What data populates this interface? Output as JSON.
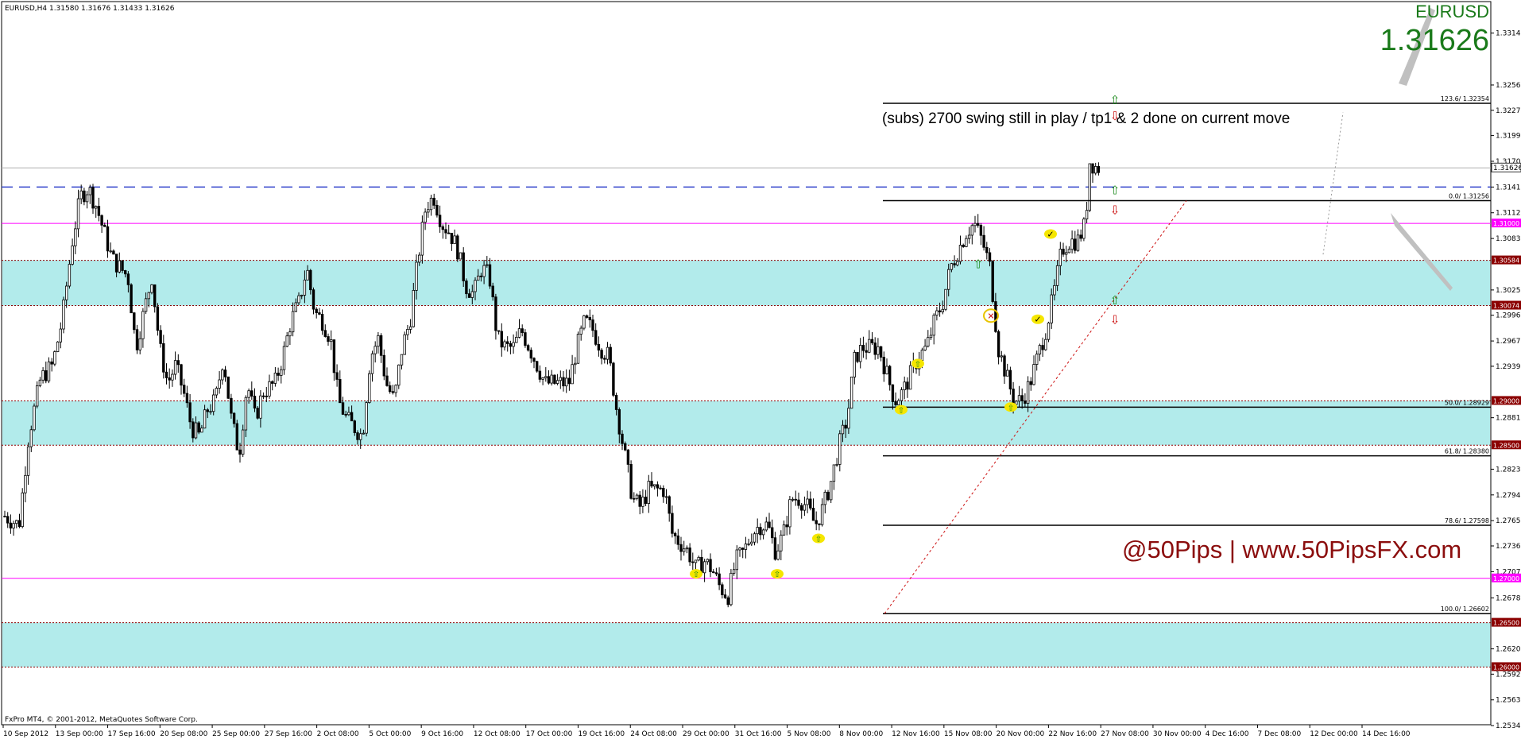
{
  "header": {
    "symbol_info": "EURUSD,H4  1.31580 1.31676 1.31433 1.31626",
    "copyright": "FxPro MT4, © 2001-2012, MetaQuotes Software Corp."
  },
  "ticker": {
    "symbol": "EURUSD",
    "price": "1.31626"
  },
  "annotation": "(subs) 2700 swing still in play / tp1 & 2 done on current move",
  "brand": "@50Pips | www.50PipsFX.com",
  "colors": {
    "candle": "#000000",
    "zone_fill": "#b2ebeb",
    "zone_border": "#8b0000",
    "magenta_line": "#ff00ff",
    "dashed_blue": "#3344cc",
    "badge_bg": "#8b0000",
    "magenta_badge_bg": "#ff00ff",
    "marker_yellow": "#f5e600",
    "arrow_green": "#1a8a1a",
    "arrow_red": "#cc1111"
  },
  "chart_data": {
    "type": "candlestick",
    "timeframe": "H4",
    "y_range": [
      1.2535,
      1.335
    ],
    "y_ticks": [
      "1.33145",
      "1.32560",
      "1.32275",
      "1.31990",
      "1.31700",
      "1.31410",
      "1.31120",
      "1.30830",
      "1.30250",
      "1.29965",
      "1.29675",
      "1.29390",
      "1.28810",
      "1.28230",
      "1.27940",
      "1.27650",
      "1.27365",
      "1.27075",
      "1.26780",
      "1.26205",
      "1.25920",
      "1.25630",
      "1.25340"
    ],
    "x_ticks": [
      "10 Sep 2012",
      "13 Sep 00:00",
      "17 Sep 16:00",
      "20 Sep 08:00",
      "25 Sep 00:00",
      "27 Sep 16:00",
      "2 Oct 08:00",
      "5 Oct 00:00",
      "9 Oct 16:00",
      "12 Oct 08:00",
      "17 Oct 00:00",
      "19 Oct 16:00",
      "24 Oct 08:00",
      "29 Oct 00:00",
      "31 Oct 16:00",
      "5 Nov 08:00",
      "8 Nov 00:00",
      "12 Nov 16:00",
      "15 Nov 08:00",
      "20 Nov 00:00",
      "22 Nov 16:00",
      "27 Nov 08:00",
      "30 Nov 00:00",
      "4 Dec 16:00",
      "7 Dec 08:00",
      "12 Dec 00:00",
      "14 Dec 16:00"
    ],
    "close_path": [
      [
        0,
        1.277
      ],
      [
        18,
        1.276
      ],
      [
        30,
        1.286
      ],
      [
        45,
        1.2925
      ],
      [
        60,
        1.294
      ],
      [
        72,
        1.299
      ],
      [
        85,
        1.308
      ],
      [
        95,
        1.313
      ],
      [
        105,
        1.314
      ],
      [
        115,
        1.312
      ],
      [
        125,
        1.309
      ],
      [
        135,
        1.306
      ],
      [
        145,
        1.305
      ],
      [
        155,
        1.304
      ],
      [
        165,
        1.296
      ],
      [
        175,
        1.3
      ],
      [
        185,
        1.304
      ],
      [
        195,
        1.296
      ],
      [
        205,
        1.292
      ],
      [
        215,
        1.294
      ],
      [
        225,
        1.291
      ],
      [
        235,
        1.287
      ],
      [
        245,
        1.286
      ],
      [
        255,
        1.289
      ],
      [
        265,
        1.29
      ],
      [
        275,
        1.295
      ],
      [
        285,
        1.288
      ],
      [
        295,
        1.284
      ],
      [
        305,
        1.292
      ],
      [
        315,
        1.288
      ],
      [
        325,
        1.291
      ],
      [
        340,
        1.292
      ],
      [
        350,
        1.295
      ],
      [
        360,
        1.299
      ],
      [
        370,
        1.301
      ],
      [
        380,
        1.305
      ],
      [
        390,
        1.3
      ],
      [
        400,
        1.299
      ],
      [
        410,
        1.297
      ],
      [
        420,
        1.29
      ],
      [
        430,
        1.288
      ],
      [
        440,
        1.287
      ],
      [
        450,
        1.286
      ],
      [
        460,
        1.295
      ],
      [
        470,
        1.297
      ],
      [
        480,
        1.292
      ],
      [
        490,
        1.29
      ],
      [
        500,
        1.296
      ],
      [
        510,
        1.299
      ],
      [
        520,
        1.306
      ],
      [
        530,
        1.312
      ],
      [
        540,
        1.313
      ],
      [
        550,
        1.31
      ],
      [
        560,
        1.309
      ],
      [
        570,
        1.307
      ],
      [
        580,
        1.303
      ],
      [
        590,
        1.302
      ],
      [
        600,
        1.305
      ],
      [
        610,
        1.304
      ],
      [
        620,
        1.297
      ],
      [
        630,
        1.296
      ],
      [
        640,
        1.296
      ],
      [
        650,
        1.298
      ],
      [
        660,
        1.296
      ],
      [
        670,
        1.294
      ],
      [
        680,
        1.292
      ],
      [
        690,
        1.292
      ],
      [
        700,
        1.292
      ],
      [
        710,
        1.292
      ],
      [
        720,
        1.296
      ],
      [
        730,
        1.299
      ],
      [
        740,
        1.298
      ],
      [
        750,
        1.296
      ],
      [
        760,
        1.295
      ],
      [
        770,
        1.289
      ],
      [
        780,
        1.284
      ],
      [
        790,
        1.279
      ],
      [
        800,
        1.278
      ],
      [
        810,
        1.28
      ],
      [
        820,
        1.28
      ],
      [
        830,
        1.28
      ],
      [
        840,
        1.275
      ],
      [
        850,
        1.274
      ],
      [
        860,
        1.273
      ],
      [
        870,
        1.271
      ],
      [
        880,
        1.272
      ],
      [
        890,
        1.271
      ],
      [
        900,
        1.269
      ],
      [
        910,
        1.268
      ],
      [
        920,
        1.272
      ],
      [
        930,
        1.273
      ],
      [
        940,
        1.275
      ],
      [
        950,
        1.276
      ],
      [
        960,
        1.276
      ],
      [
        970,
        1.273
      ],
      [
        980,
        1.275
      ],
      [
        990,
        1.279
      ],
      [
        1000,
        1.279
      ],
      [
        1010,
        1.278
      ],
      [
        1020,
        1.276
      ],
      [
        1030,
        1.278
      ],
      [
        1040,
        1.281
      ],
      [
        1050,
        1.285
      ],
      [
        1060,
        1.288
      ],
      [
        1070,
        1.295
      ],
      [
        1080,
        1.296
      ],
      [
        1090,
        1.296
      ],
      [
        1100,
        1.296
      ],
      [
        1110,
        1.293
      ],
      [
        1120,
        1.29
      ],
      [
        1130,
        1.291
      ],
      [
        1140,
        1.293
      ],
      [
        1150,
        1.295
      ],
      [
        1160,
        1.296
      ],
      [
        1170,
        1.299
      ],
      [
        1180,
        1.301
      ],
      [
        1190,
        1.305
      ],
      [
        1200,
        1.307
      ],
      [
        1210,
        1.309
      ],
      [
        1220,
        1.31
      ],
      [
        1230,
        1.308
      ],
      [
        1240,
        1.305
      ],
      [
        1250,
        1.296
      ],
      [
        1260,
        1.293
      ],
      [
        1270,
        1.29
      ],
      [
        1280,
        1.29
      ],
      [
        1290,
        1.292
      ],
      [
        1300,
        1.295
      ],
      [
        1310,
        1.298
      ],
      [
        1320,
        1.302
      ],
      [
        1330,
        1.307
      ],
      [
        1340,
        1.308
      ],
      [
        1350,
        1.308
      ],
      [
        1360,
        1.31
      ],
      [
        1365,
        1.317
      ],
      [
        1375,
        1.3162
      ],
      [
        1380,
        1.3165
      ]
    ],
    "zones": [
      {
        "top": 1.30584,
        "bottom": 1.30074,
        "top_label": "1.30584",
        "bottom_label": "1.30074"
      },
      {
        "top": 1.29,
        "bottom": 1.285,
        "top_label": "1.29000",
        "bottom_label": "1.28500"
      },
      {
        "top": 1.265,
        "bottom": 1.26,
        "top_label": "1.26500",
        "bottom_label": "1.26000"
      }
    ],
    "magenta_lines": [
      {
        "value": 1.31,
        "label": "1.31000"
      },
      {
        "value": 1.27,
        "label": "1.27000"
      }
    ],
    "dashed_line": {
      "value": 1.3141
    },
    "current_price": {
      "value": 1.31626,
      "label": "1.31626"
    },
    "fib_levels": [
      {
        "value": 1.32354,
        "label": "123.6/ 1.32354"
      },
      {
        "value": 1.31256,
        "label": "0.0/ 1.31256"
      },
      {
        "value": 1.28929,
        "label": "50.0/ 1.28929"
      },
      {
        "value": 1.2838,
        "label": "61.8/ 1.28380"
      },
      {
        "value": 1.27598,
        "label": "78.6/ 1.27598"
      },
      {
        "value": 1.26602,
        "label": "100.0/ 1.26602"
      }
    ],
    "markers": [
      {
        "x": 870,
        "y": 1.2705,
        "kind": "buy"
      },
      {
        "x": 972,
        "y": 1.2705,
        "kind": "buy"
      },
      {
        "x": 1024,
        "y": 1.2745,
        "kind": "buy"
      },
      {
        "x": 1128,
        "y": 1.289,
        "kind": "buy"
      },
      {
        "x": 1149,
        "y": 1.2942,
        "kind": "buy"
      },
      {
        "x": 1241,
        "y": 1.2996,
        "kind": "stop"
      },
      {
        "x": 1266,
        "y": 1.2893,
        "kind": "buy"
      },
      {
        "x": 1300,
        "y": 1.2992,
        "kind": "target"
      },
      {
        "x": 1316,
        "y": 1.3088,
        "kind": "target"
      }
    ],
    "arrows": [
      {
        "x": 1397,
        "up": 1.324,
        "down": 1.3222
      },
      {
        "x": 1397,
        "up": 1.3138,
        "down": 1.3116
      },
      {
        "x": 1397,
        "up": 1.3014,
        "down": 1.2992
      },
      {
        "x": 1225,
        "up": 1.3055
      }
    ]
  }
}
